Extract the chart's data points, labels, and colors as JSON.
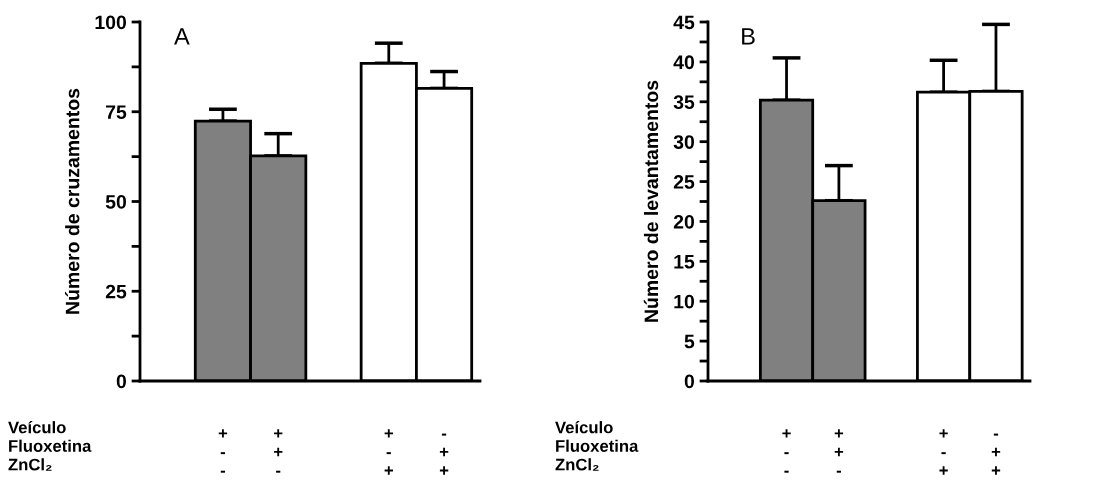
{
  "chart_data": [
    {
      "type": "bar",
      "ylabel": "Número de cruzamentos",
      "categories": [
        "+\n-\n-",
        "+\n+\n-",
        null,
        "+\n-\n+",
        "-\n+\n+"
      ],
      "values": [
        72.4,
        62.7,
        null,
        88.5,
        81.5
      ],
      "colors": [
        "#808080",
        "#808080",
        null,
        "#ffffff",
        "#ffffff"
      ],
      "errors": [
        [
          72.4,
          75.7
        ],
        [
          62.7,
          68.9
        ],
        null,
        [
          88.5,
          94.1
        ],
        [
          81.5,
          86.2
        ]
      ],
      "ylim": [
        0,
        100
      ],
      "yticks": [
        0,
        25,
        50,
        75,
        100
      ],
      "annotations": [
        "A",
        "Veículo\nFluoxetina\nZnCl₂"
      ]
    },
    {
      "type": "bar",
      "ylabel": "Número de levantamentos",
      "categories": [
        "+\n-\n-",
        "+\n+\n-",
        null,
        "+\n-\n+",
        "-\n+\n+"
      ],
      "values": [
        35.2,
        22.6,
        null,
        36.2,
        36.3
      ],
      "colors": [
        "#808080",
        "#808080",
        null,
        "#ffffff",
        "#ffffff"
      ],
      "errors": [
        [
          35.2,
          40.5
        ],
        [
          22.6,
          27.0
        ],
        null,
        [
          36.2,
          40.2
        ],
        [
          36.3,
          44.7
        ]
      ],
      "ylim": [
        0,
        45
      ],
      "yticks": [
        0,
        5,
        10,
        15,
        20,
        25,
        30,
        35,
        40,
        45
      ],
      "annotations": [
        "B",
        "Veículo\nFluoxetina\nZnCl₂"
      ]
    }
  ]
}
